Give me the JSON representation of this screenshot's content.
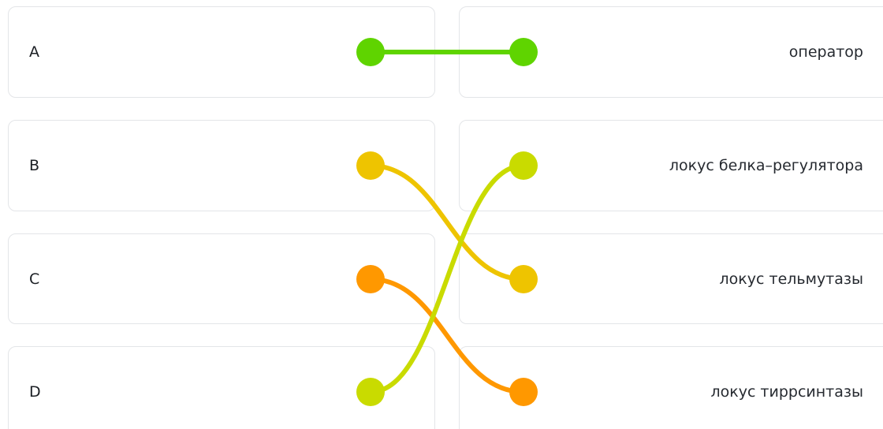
{
  "left_items": [
    {
      "label": "A"
    },
    {
      "label": "B"
    },
    {
      "label": "C"
    },
    {
      "label": "D"
    }
  ],
  "right_items": [
    {
      "label": "оператор"
    },
    {
      "label": "локус белка–регулятора"
    },
    {
      "label": "локус тельмутазы"
    },
    {
      "label": "локус тиррсинтазы"
    }
  ],
  "connections": [
    {
      "from": "A",
      "to": "оператор",
      "color": "#5fd400"
    },
    {
      "from": "B",
      "to": "локус тельмутазы",
      "color": "#eec400"
    },
    {
      "from": "C",
      "to": "локус тиррсинтазы",
      "color": "#ff9800"
    },
    {
      "from": "D",
      "to": "локус белка–регулятора",
      "color": "#c9db00"
    }
  ]
}
